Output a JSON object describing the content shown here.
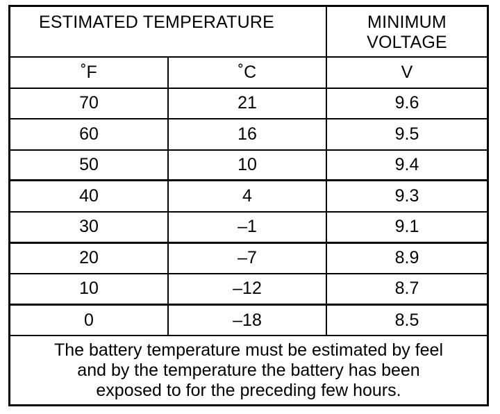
{
  "header": {
    "temperature_title": "ESTIMATED TEMPERATURE",
    "voltage_title_line1": "MINIMUM",
    "voltage_title_line2": "VOLTAGE"
  },
  "units": {
    "fahrenheit": "˚F",
    "celsius": "˚C",
    "volts": "V"
  },
  "rows": [
    {
      "f": "70",
      "c": "21",
      "v": "9.6"
    },
    {
      "f": "60",
      "c": "16",
      "v": "9.5"
    },
    {
      "f": "50",
      "c": "10",
      "v": "9.4"
    },
    {
      "f": "40",
      "c": "4",
      "v": "9.3"
    },
    {
      "f": "30",
      "c": "–1",
      "v": "9.1"
    },
    {
      "f": "20",
      "c": "–7",
      "v": "8.9"
    },
    {
      "f": "10",
      "c": "–12",
      "v": "8.7"
    },
    {
      "f": "0",
      "c": "–18",
      "v": "8.5"
    }
  ],
  "note": {
    "line1": "The battery temperature must be estimated by feel",
    "line2": "and by the temperature the battery has been",
    "line3": "exposed to for the preceding few hours."
  }
}
